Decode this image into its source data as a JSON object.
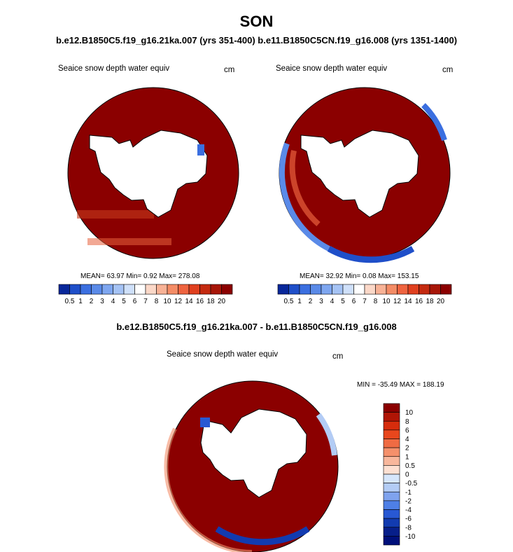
{
  "season": "SON",
  "subtitle": "b.e12.B1850C5.f19_g16.21ka.007 (yrs 351-400) b.e11.B1850C5CN.f19_g16.008 (yrs 1351-1400)",
  "diff_title": "b.e12.B1850C5.f19_g16.21ka.007 - b.e11.B1850C5CN.f19_g16.008",
  "colors": {
    "dark_red": "#8b0000",
    "land": "#ffffff",
    "coast": "#000000"
  },
  "panels": [
    {
      "title": "Seaice snow depth water equiv",
      "units": "cm",
      "stats": "MEAN=  63.97  Min=   0.92  Max= 278.08"
    },
    {
      "title": "Seaice snow depth water equiv",
      "units": "cm",
      "stats": "MEAN=  32.92  Min=   0.08  Max= 153.15"
    }
  ],
  "diff_panel": {
    "title": "Seaice snow depth water equiv",
    "units": "cm",
    "stats": "MIN = -35.49 MAX = 188.19"
  },
  "colorbar_levels": [
    "0.5",
    "1",
    "2",
    "3",
    "4",
    "5",
    "6",
    "7",
    "8",
    "10",
    "12",
    "14",
    "16",
    "18",
    "20"
  ],
  "colorbar_colors": [
    "#08279a",
    "#1f4fc9",
    "#3b6fe0",
    "#5a8ae8",
    "#7ea6f0",
    "#a5c3f5",
    "#cfe0fa",
    "#ffffff",
    "#fbd8c8",
    "#f8b296",
    "#f48c66",
    "#ef6440",
    "#e0401f",
    "#c42a10",
    "#a71608",
    "#8b0000"
  ],
  "diff_levels": [
    "10",
    "8",
    "6",
    "4",
    "2",
    "1",
    "0.5",
    "0",
    "-0.5",
    "-1",
    "-2",
    "-4",
    "-6",
    "-8",
    "-10"
  ],
  "diff_colors": [
    "#8b0000",
    "#b01505",
    "#d62c0c",
    "#e8471d",
    "#ef6b43",
    "#f4906b",
    "#f8b79c",
    "#fde0d2",
    "#d6e6fb",
    "#b3ccf5",
    "#7fa3ee",
    "#4e7fe6",
    "#2858d3",
    "#123bb0",
    "#071f8a",
    "#00107a"
  ]
}
